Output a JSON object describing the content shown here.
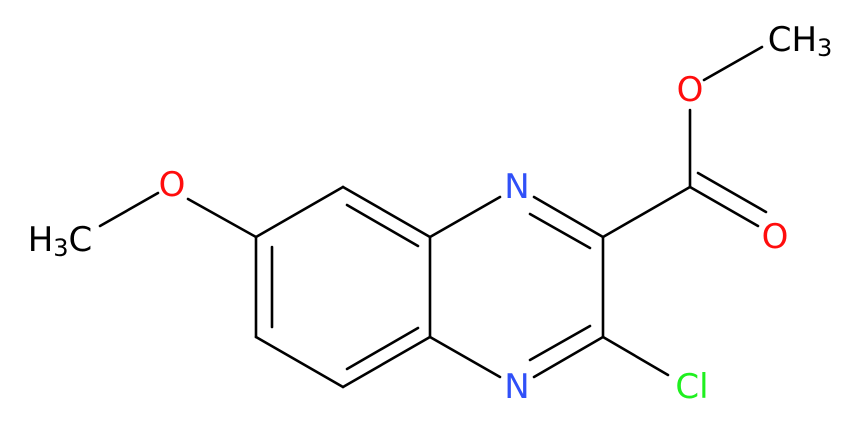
{
  "atoms": [
    {
      "text": "CH",
      "sub": "3"
    },
    {
      "text": "O"
    },
    {
      "text": "O"
    },
    {
      "text": "N"
    },
    {
      "text": "N"
    },
    {
      "text": "Cl"
    },
    {
      "text": "O"
    },
    {
      "text": "H",
      "sub": "3",
      "after": "C"
    }
  ]
}
